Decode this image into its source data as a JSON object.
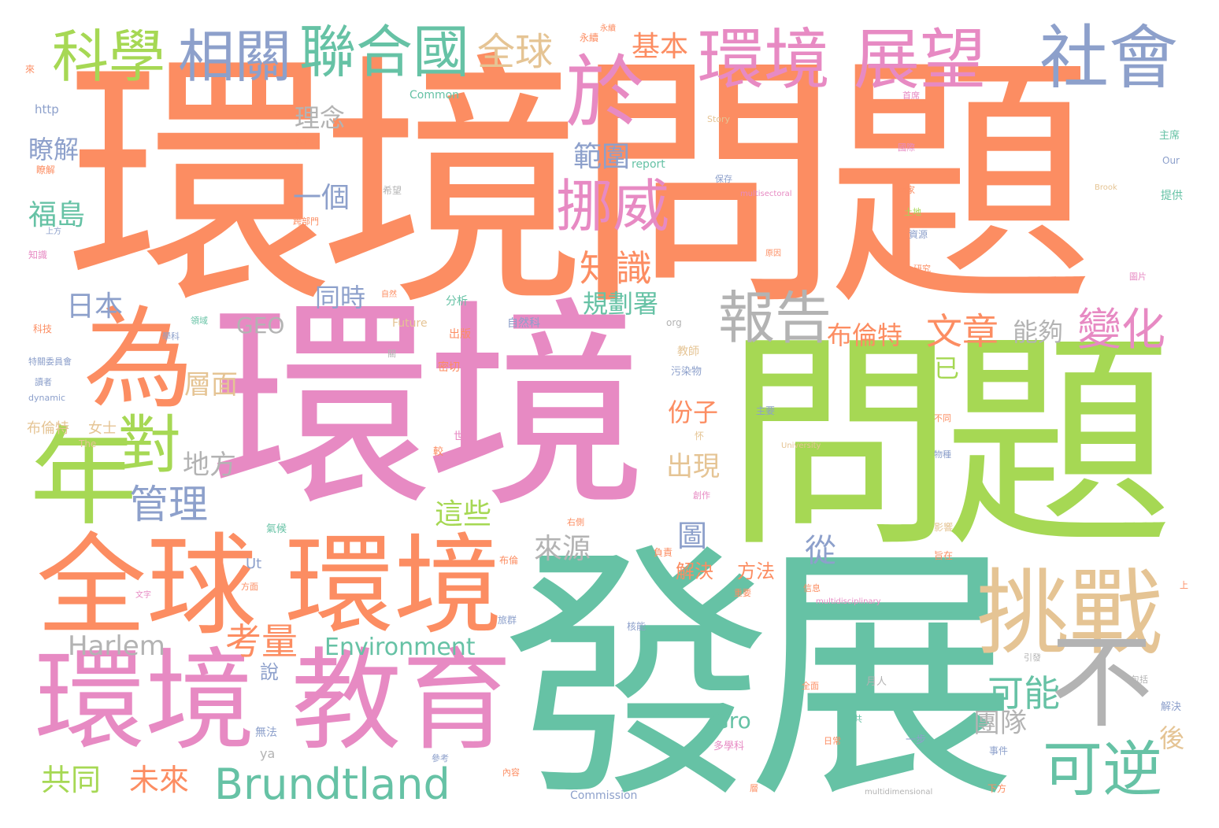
{
  "words": [
    {
      "text": "環境問題",
      "color": "#fc8d62",
      "vertical": false
    },
    {
      "text": "環境",
      "color": "#e78ac3",
      "vertical": false
    },
    {
      "text": "問題",
      "color": "#a6d854",
      "vertical": false
    },
    {
      "text": "發展",
      "color": "#66c2a5",
      "vertical": false
    },
    {
      "text": "全球",
      "color": "#fc8d62",
      "vertical": false
    },
    {
      "text": "環境",
      "color": "#fc8d62",
      "vertical": false
    },
    {
      "text": "環境",
      "color": "#e78ac3",
      "vertical": false
    },
    {
      "text": "教育",
      "color": "#e78ac3",
      "vertical": false
    },
    {
      "text": "為",
      "color": "#fc8d62",
      "vertical": false
    },
    {
      "text": "年",
      "color": "#a6d854",
      "vertical": false
    },
    {
      "text": "對",
      "color": "#a6d854",
      "vertical": false
    },
    {
      "text": "挑戰",
      "color": "#e5c494",
      "vertical": false
    },
    {
      "text": "不",
      "color": "#b3b3b3",
      "vertical": false
    },
    {
      "text": "可逆",
      "color": "#66c2a5",
      "vertical": false
    },
    {
      "text": "環境",
      "color": "#e78ac3",
      "vertical": false
    },
    {
      "text": "展望",
      "color": "#e78ac3",
      "vertical": false
    },
    {
      "text": "社會",
      "color": "#8da0cb",
      "vertical": false
    },
    {
      "text": "科學",
      "color": "#a6d854",
      "vertical": false
    },
    {
      "text": "相關",
      "color": "#8da0cb",
      "vertical": false
    },
    {
      "text": "聯合國",
      "color": "#66c2a5",
      "vertical": false
    },
    {
      "text": "全球",
      "color": "#e5c494",
      "vertical": false
    },
    {
      "text": "於",
      "color": "#e78ac3",
      "vertical": false
    },
    {
      "text": "挪威",
      "color": "#e78ac3",
      "vertical": false
    },
    {
      "text": "報告",
      "color": "#b3b3b3",
      "vertical": false
    },
    {
      "text": "Brundtland",
      "color": "#66c2a5",
      "vertical": false
    },
    {
      "text": "管理",
      "color": "#8da0cb",
      "vertical": false
    },
    {
      "text": "考量",
      "color": "#fc8d62",
      "vertical": false
    },
    {
      "text": "文章",
      "color": "#fc8d62",
      "vertical": false
    },
    {
      "text": "變化",
      "color": "#e78ac3",
      "vertical": false
    },
    {
      "text": "知識",
      "color": "#fc8d62",
      "vertical": false
    },
    {
      "text": "可能",
      "color": "#66c2a5",
      "vertical": false
    },
    {
      "text": "基本",
      "color": "#fc8d62",
      "vertical": false
    },
    {
      "text": "瞭解",
      "color": "#8da0cb",
      "vertical": false
    },
    {
      "text": "福島",
      "color": "#66c2a5",
      "vertical": false
    },
    {
      "text": "日本",
      "color": "#8da0cb",
      "vertical": false
    },
    {
      "text": "理念",
      "color": "#b3b3b3",
      "vertical": false
    },
    {
      "text": "一個",
      "color": "#8da0cb",
      "vertical": false
    },
    {
      "text": "範圍",
      "color": "#8da0cb",
      "vertical": false
    },
    {
      "text": "規劃署",
      "color": "#66c2a5",
      "vertical": false
    },
    {
      "text": "同時",
      "color": "#8da0cb",
      "vertical": false
    },
    {
      "text": "GEO",
      "color": "#b3b3b3",
      "vertical": false
    },
    {
      "text": "布倫特",
      "color": "#fc8d62",
      "vertical": false
    },
    {
      "text": "能夠",
      "color": "#b3b3b3",
      "vertical": false
    },
    {
      "text": "層面",
      "color": "#e5c494",
      "vertical": false
    },
    {
      "text": "地方",
      "color": "#b3b3b3",
      "vertical": false
    },
    {
      "text": "份子",
      "color": "#fc8d62",
      "vertical": false
    },
    {
      "text": "出現",
      "color": "#e5c494",
      "vertical": false
    },
    {
      "text": "這些",
      "color": "#a6d854",
      "vertical": false
    },
    {
      "text": "來源",
      "color": "#b3b3b3",
      "vertical": false
    },
    {
      "text": "圖",
      "color": "#8da0cb",
      "vertical": false
    },
    {
      "text": "從",
      "color": "#8da0cb",
      "vertical": false
    },
    {
      "text": "解決",
      "color": "#fc8d62",
      "vertical": false
    },
    {
      "text": "方法",
      "color": "#fc8d62",
      "vertical": false
    },
    {
      "text": "Harlem",
      "color": "#b3b3b3",
      "vertical": false
    },
    {
      "text": "Environment",
      "color": "#66c2a5",
      "vertical": false
    },
    {
      "text": "說",
      "color": "#8da0cb",
      "vertical": false
    },
    {
      "text": "共同",
      "color": "#a6d854",
      "vertical": false
    },
    {
      "text": "未來",
      "color": "#fc8d62",
      "vertical": false
    },
    {
      "text": "團隊",
      "color": "#b3b3b3",
      "vertical": false
    },
    {
      "text": "Gro",
      "color": "#66c2a5",
      "vertical": false
    },
    {
      "text": "後",
      "color": "#e5c494",
      "vertical": false
    },
    {
      "text": "已",
      "color": "#a6d854",
      "vertical": false
    },
    {
      "text": "布倫特",
      "color": "#e5c494",
      "vertical": false
    },
    {
      "text": "女士",
      "color": "#e5c494",
      "vertical": false
    },
    {
      "text": "Ut",
      "color": "#8da0cb",
      "vertical": false
    },
    {
      "text": "Common",
      "color": "#66c2a5",
      "vertical": false
    },
    {
      "text": "report",
      "color": "#66c2a5",
      "vertical": false
    },
    {
      "text": "http",
      "color": "#8da0cb",
      "vertical": false
    },
    {
      "text": "Future",
      "color": "#e5c494",
      "vertical": false
    },
    {
      "text": "Commission",
      "color": "#8da0cb",
      "vertical": false
    },
    {
      "text": "dynamic",
      "color": "#8da0cb",
      "vertical": false
    },
    {
      "text": "The",
      "color": "#e5c494",
      "vertical": false
    },
    {
      "text": "org",
      "color": "#b3b3b3",
      "vertical": false
    },
    {
      "text": "Story",
      "color": "#e5c494",
      "vertical": false
    },
    {
      "text": "University",
      "color": "#e5c494",
      "vertical": false
    },
    {
      "text": "Our",
      "color": "#8da0cb",
      "vertical": false
    },
    {
      "text": "Brook",
      "color": "#e5c494",
      "vertical": false
    },
    {
      "text": "multisectoral",
      "color": "#e78ac3",
      "vertical": false
    },
    {
      "text": "multidisciplinary",
      "color": "#e78ac3",
      "vertical": false
    },
    {
      "text": "multidimensional",
      "color": "#b3b3b3",
      "vertical": false
    },
    {
      "text": "永續",
      "color": "#fc8d62",
      "vertical": false
    },
    {
      "text": "自然科",
      "color": "#8da0cb",
      "vertical": false
    },
    {
      "text": "污染物",
      "color": "#8da0cb",
      "vertical": false
    },
    {
      "text": "教師",
      "color": "#e5c494",
      "vertical": false
    },
    {
      "text": "分析",
      "color": "#66c2a5",
      "vertical": false
    },
    {
      "text": "出版",
      "color": "#fc8d62",
      "vertical": false
    },
    {
      "text": "密切",
      "color": "#fc8d62",
      "vertical": false
    },
    {
      "text": "世人",
      "color": "#e78ac3",
      "vertical": false
    },
    {
      "text": "氣候",
      "color": "#66c2a5",
      "vertical": false
    },
    {
      "text": "多學科",
      "color": "#e78ac3",
      "vertical": false
    },
    {
      "text": "無法",
      "color": "#8da0cb",
      "vertical": false
    },
    {
      "text": "參考",
      "color": "#8da0cb",
      "vertical": false
    },
    {
      "text": "主席",
      "color": "#66c2a5",
      "vertical": false
    },
    {
      "text": "提供",
      "color": "#66c2a5",
      "vertical": false
    },
    {
      "text": "圖片",
      "color": "#e78ac3",
      "vertical": false
    },
    {
      "text": "資源",
      "color": "#8da0cb",
      "vertical": false
    },
    {
      "text": "事件",
      "color": "#8da0cb",
      "vertical": false
    },
    {
      "text": "下方",
      "color": "#fc8d62",
      "vertical": false
    },
    {
      "text": "解決",
      "color": "#8da0cb",
      "vertical": false
    },
    {
      "text": "月人",
      "color": "#b3b3b3",
      "vertical": false
    },
    {
      "text": "引發",
      "color": "#b3b3b3",
      "vertical": false
    },
    {
      "text": "包括",
      "color": "#b3b3b3",
      "vertical": false
    },
    {
      "text": "一步",
      "color": "#8da0cb",
      "vertical": false
    },
    {
      "text": "影響",
      "color": "#e5c494",
      "vertical": false
    },
    {
      "text": "旨在",
      "color": "#fc8d62",
      "vertical": false
    },
    {
      "text": "核能",
      "color": "#8da0cb",
      "vertical": false
    },
    {
      "text": "旅群",
      "color": "#8da0cb",
      "vertical": false
    },
    {
      "text": "布倫",
      "color": "#fc8d62",
      "vertical": false
    },
    {
      "text": "科技",
      "color": "#fc8d62",
      "vertical": false
    },
    {
      "text": "領域",
      "color": "#66c2a5",
      "vertical": false
    },
    {
      "text": "知識",
      "color": "#e78ac3",
      "vertical": false
    },
    {
      "text": "上方",
      "color": "#8da0cb",
      "vertical": false
    },
    {
      "text": "瞭解",
      "color": "#fc8d62",
      "vertical": false
    },
    {
      "text": "特關委員會",
      "color": "#8da0cb",
      "vertical": false
    },
    {
      "text": "讀者",
      "color": "#8da0cb",
      "vertical": false
    },
    {
      "text": "說明",
      "color": "#fc8d62",
      "vertical": false
    },
    {
      "text": "來",
      "color": "#fc8d62",
      "vertical": false
    },
    {
      "text": "學科",
      "color": "#8da0cb",
      "vertical": false
    },
    {
      "text": "首席",
      "color": "#e78ac3",
      "vertical": false
    },
    {
      "text": "國際",
      "color": "#e78ac3",
      "vertical": false
    },
    {
      "text": "方面",
      "color": "#fc8d62",
      "vertical": false
    },
    {
      "text": "文字",
      "color": "#e78ac3",
      "vertical": false
    },
    {
      "text": "較",
      "color": "#fc8d62",
      "vertical": false
    },
    {
      "text": "上",
      "color": "#fc8d62",
      "vertical": false
    },
    {
      "text": "怀",
      "color": "#e5c494",
      "vertical": false
    },
    {
      "text": "創作",
      "color": "#e78ac3",
      "vertical": false
    },
    {
      "text": "物種",
      "color": "#8da0cb",
      "vertical": false
    },
    {
      "text": "不同",
      "color": "#fc8d62",
      "vertical": false
    },
    {
      "text": "主要",
      "color": "#8da0cb",
      "vertical": false
    },
    {
      "text": "內容",
      "color": "#fc8d62",
      "vertical": false
    },
    {
      "text": "層",
      "color": "#fc8d62",
      "vertical": false
    },
    {
      "text": "負責",
      "color": "#fc8d62",
      "vertical": false
    },
    {
      "text": "右側",
      "color": "#fc8d62",
      "vertical": false
    },
    {
      "text": "日常",
      "color": "#fc8d62",
      "vertical": false
    },
    {
      "text": "土地",
      "color": "#a6d854",
      "vertical": false
    },
    {
      "text": "原因",
      "color": "#fc8d62",
      "vertical": false
    },
    {
      "text": "保存",
      "color": "#8da0cb",
      "vertical": false
    },
    {
      "text": "國家",
      "color": "#fc8d62",
      "vertical": false
    },
    {
      "text": "研究",
      "color": "#fc8d62",
      "vertical": false
    },
    {
      "text": "希望",
      "color": "#b3b3b3",
      "vertical": false
    },
    {
      "text": "跨部門",
      "color": "#fc8d62",
      "vertical": false
    },
    {
      "text": "自然",
      "color": "#fc8d62",
      "vertical": false
    },
    {
      "text": "關",
      "color": "#b3b3b3",
      "vertical": false
    },
    {
      "text": "信息",
      "color": "#fc8d62",
      "vertical": false
    },
    {
      "text": "共",
      "color": "#66c2a5",
      "vertical": false
    },
    {
      "text": "全面",
      "color": "#fc8d62",
      "vertical": false
    },
    {
      "text": "重要",
      "color": "#fc8d62",
      "vertical": false
    },
    {
      "text": "永續",
      "color": "#fc8d62",
      "vertical": false
    },
    {
      "text": "ya",
      "color": "#b3b3b3",
      "vertical": false
    }
  ]
}
